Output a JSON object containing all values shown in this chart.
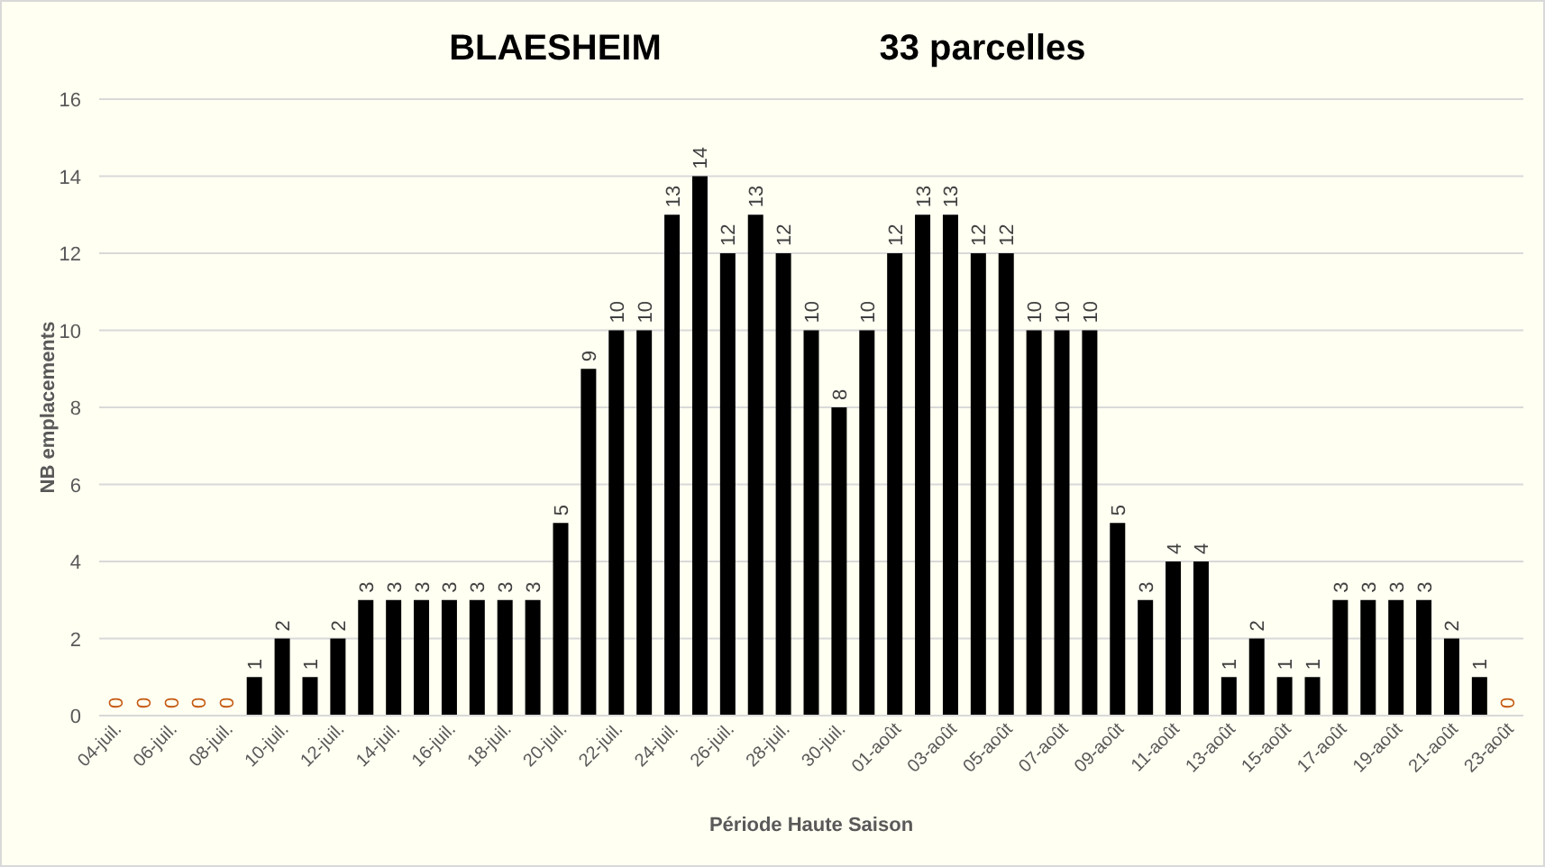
{
  "chart_data": {
    "type": "bar",
    "title": "BLAESHEIM",
    "subtitle": "33 parcelles",
    "xlabel": "Période Haute Saison",
    "ylabel": "NB emplacements",
    "categories": [
      "04-juil.",
      null,
      "06-juil.",
      null,
      "08-juil.",
      null,
      "10-juil.",
      null,
      "12-juil.",
      null,
      "14-juil.",
      null,
      "16-juil.",
      null,
      "18-juil.",
      null,
      "20-juil.",
      null,
      "22-juil.",
      null,
      "24-juil.",
      null,
      "26-juil.",
      null,
      "28-juil.",
      null,
      "30-juil.",
      null,
      "01-août",
      null,
      "03-août",
      null,
      "05-août",
      null,
      "07-août",
      null,
      "09-août",
      null,
      "11-août",
      null,
      "13-août",
      null,
      "15-août",
      null,
      "17-août",
      null,
      "19-août",
      null,
      "21-août",
      null,
      "23-août"
    ],
    "values": [
      0,
      0,
      0,
      0,
      0,
      1,
      2,
      1,
      2,
      3,
      3,
      3,
      3,
      3,
      3,
      3,
      5,
      9,
      10,
      10,
      13,
      14,
      12,
      13,
      12,
      10,
      8,
      10,
      12,
      13,
      13,
      12,
      12,
      10,
      10,
      10,
      5,
      3,
      4,
      4,
      1,
      2,
      1,
      1,
      3,
      3,
      3,
      3,
      2,
      1,
      0
    ],
    "color": "#000000",
    "ylim": [
      0,
      16
    ],
    "yticks": [
      0,
      2,
      4,
      6,
      8,
      10,
      12,
      14,
      16
    ],
    "grid": "y",
    "data_labels": true
  }
}
